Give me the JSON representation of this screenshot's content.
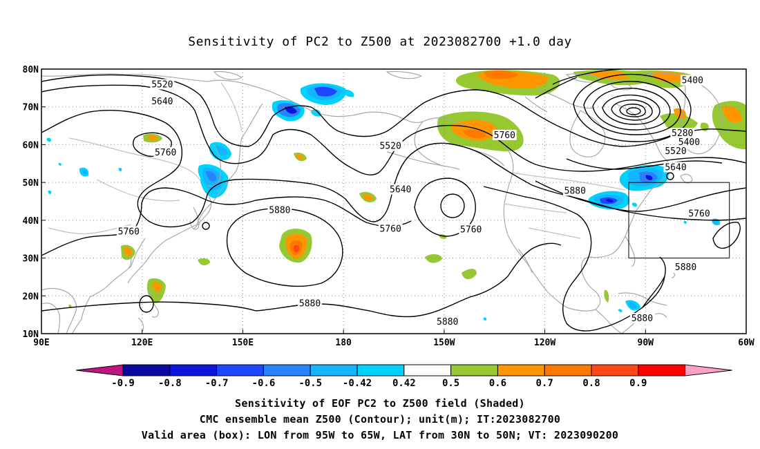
{
  "title": "Sensitivity of PC2 to Z500 at 2023082700 +1.0 day",
  "captions": [
    "Sensitivity of EOF PC2 to Z500 field (Shaded)",
    "CMC ensemble mean Z500 (Contour); unit(m); IT:2023082700",
    "Valid area (box): LON from 95W to 65W, LAT from 30N to 50N; VT: 2023090200"
  ],
  "map": {
    "lon_range": [
      90,
      300
    ],
    "lat_range": [
      10,
      80
    ],
    "x_ticks": [
      {
        "lon": 90,
        "label": "90E"
      },
      {
        "lon": 120,
        "label": "120E"
      },
      {
        "lon": 150,
        "label": "150E"
      },
      {
        "lon": 180,
        "label": "180"
      },
      {
        "lon": 210,
        "label": "150W"
      },
      {
        "lon": 240,
        "label": "120W"
      },
      {
        "lon": 270,
        "label": "90W"
      },
      {
        "lon": 300,
        "label": "60W"
      }
    ],
    "y_ticks": [
      {
        "lat": 80,
        "label": "80N"
      },
      {
        "lat": 70,
        "label": "70N"
      },
      {
        "lat": 60,
        "label": "60N"
      },
      {
        "lat": 50,
        "label": "50N"
      },
      {
        "lat": 40,
        "label": "40N"
      },
      {
        "lat": 30,
        "label": "30N"
      },
      {
        "lat": 20,
        "label": "20N"
      },
      {
        "lat": 10,
        "label": "10N"
      }
    ],
    "valid_box": {
      "lon": [
        265,
        295
      ],
      "lat": [
        30,
        50
      ]
    },
    "contour_labels": [
      {
        "text": "5520",
        "lon": 126,
        "lat": 75.7
      },
      {
        "text": "5640",
        "lon": 126,
        "lat": 71.2
      },
      {
        "text": "5760",
        "lon": 127,
        "lat": 57.7
      },
      {
        "text": "5760",
        "lon": 116,
        "lat": 36.8
      },
      {
        "text": "5880",
        "lon": 161,
        "lat": 42.4
      },
      {
        "text": "5880",
        "lon": 170,
        "lat": 17.8
      },
      {
        "text": "5520",
        "lon": 194,
        "lat": 59.4
      },
      {
        "text": "5640",
        "lon": 197,
        "lat": 47.9
      },
      {
        "text": "5760",
        "lon": 194,
        "lat": 37.5
      },
      {
        "text": "5760",
        "lon": 218,
        "lat": 37.3
      },
      {
        "text": "5880",
        "lon": 211,
        "lat": 12.9
      },
      {
        "text": "5760",
        "lon": 228,
        "lat": 62.3
      },
      {
        "text": "5880",
        "lon": 249,
        "lat": 47.6
      },
      {
        "text": "5880",
        "lon": 269,
        "lat": 13.8
      },
      {
        "text": "5400",
        "lon": 284,
        "lat": 76.8
      },
      {
        "text": "5280",
        "lon": 281,
        "lat": 62.8
      },
      {
        "text": "5400",
        "lon": 283,
        "lat": 60.4
      },
      {
        "text": "5520",
        "lon": 279,
        "lat": 58.1
      },
      {
        "text": "5640",
        "lon": 279,
        "lat": 53.8
      },
      {
        "text": "5760",
        "lon": 286,
        "lat": 41.5
      },
      {
        "text": "5880",
        "lon": 282,
        "lat": 27.4
      }
    ]
  },
  "colorbar": {
    "labels": [
      "-0.9",
      "-0.8",
      "-0.7",
      "-0.6",
      "-0.5",
      "-0.42",
      "0.42",
      "0.5",
      "0.6",
      "0.7",
      "0.8",
      "0.9"
    ],
    "colors": [
      "#0a0aa0",
      "#0a14dc",
      "#1e46ff",
      "#2882ff",
      "#14b4ff",
      "#00d2ff",
      "#ffffff",
      "#96c832",
      "#ff9600",
      "#ff7800",
      "#ff4614",
      "#ff0000"
    ],
    "low_end_color": "#c01480",
    "high_end_color": "#ffa0c8"
  }
}
